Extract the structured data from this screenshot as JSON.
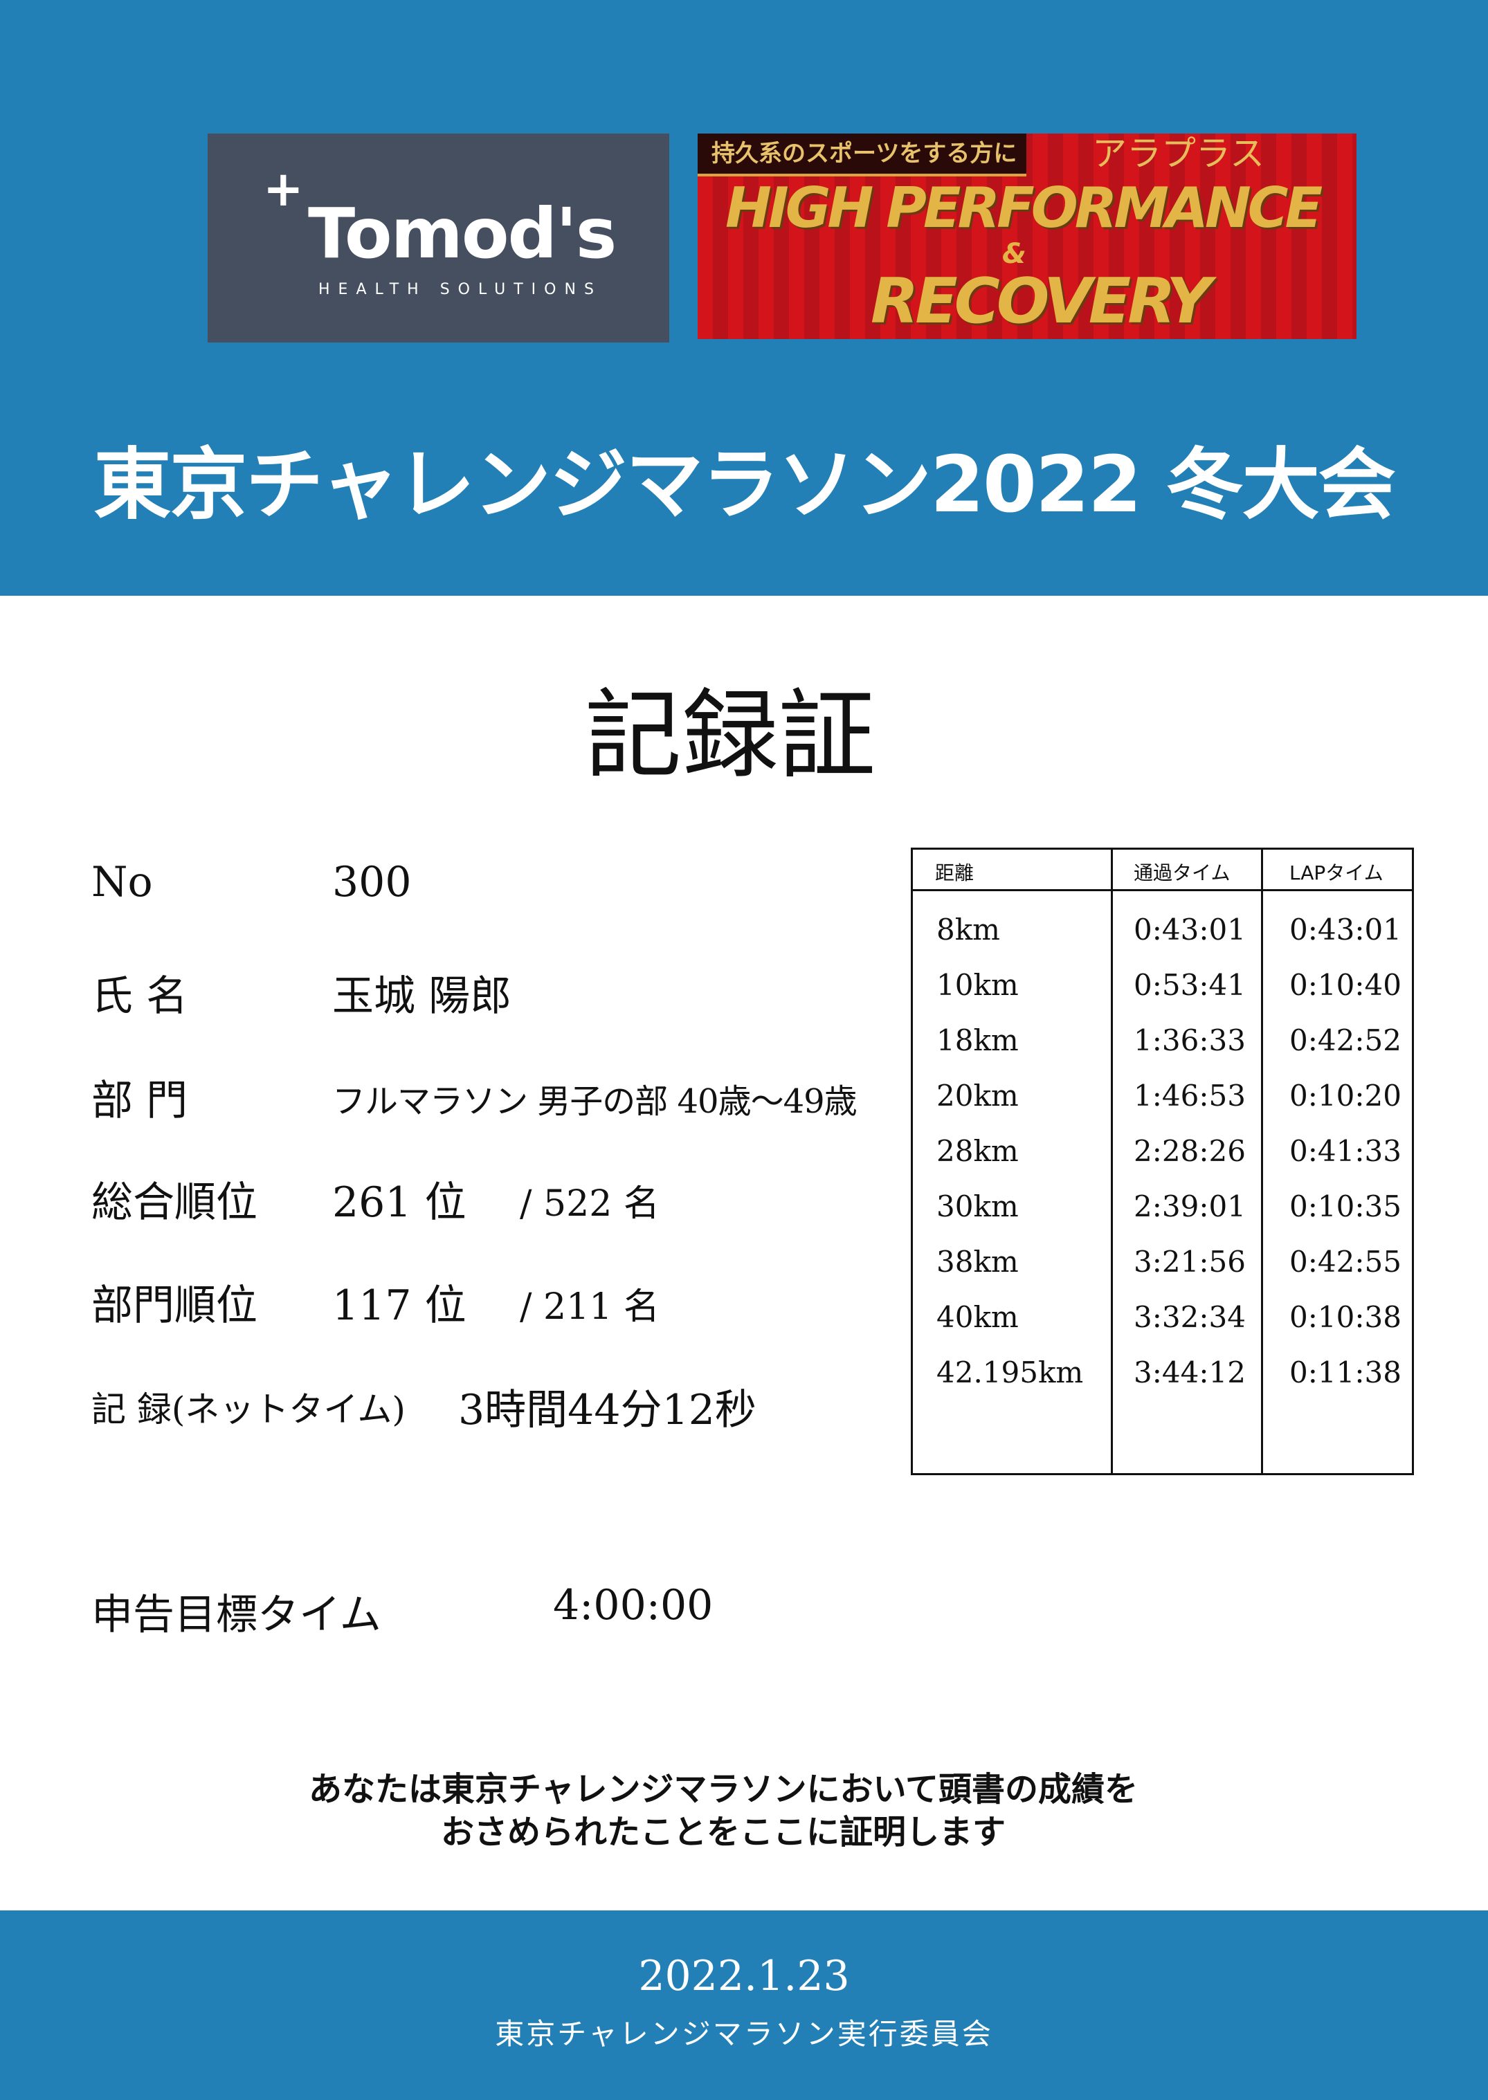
{
  "header": {
    "title": "東京チャレンジマラソン2022 冬大会",
    "logo_tomods": {
      "brand": "Tomod's",
      "sub": "HEALTH SOLUTIONS"
    },
    "logo_banner": {
      "tag": "持久系のスポーツをする方に",
      "kana": "アラプラス",
      "line1": "HIGH PERFORMANCE",
      "amp": "&",
      "line2": "RECOVERY"
    }
  },
  "doc_title": "記録証",
  "fields": [
    {
      "label": "No",
      "value": "300"
    },
    {
      "label": "氏 名",
      "value": "玉城 陽郎"
    },
    {
      "label": "部 門",
      "value": "フルマラソン 男子の部 40歳〜49歳"
    },
    {
      "label": "総合順位",
      "value": "261 位",
      "total": "/ 522 名"
    },
    {
      "label": "部門順位",
      "value": "117 位",
      "total": "/ 211 名"
    },
    {
      "label": "記 録(ネットタイム)",
      "value": "3時間44分12秒"
    },
    {
      "label": "申告目標タイム",
      "value": "4:00:00"
    }
  ],
  "splits": {
    "headers": [
      "距離",
      "通過タイム",
      "LAPタイム"
    ],
    "rows": [
      [
        "8km",
        "0:43:01",
        "0:43:01"
      ],
      [
        "10km",
        "0:53:41",
        "0:10:40"
      ],
      [
        "18km",
        "1:36:33",
        "0:42:52"
      ],
      [
        "20km",
        "1:46:53",
        "0:10:20"
      ],
      [
        "28km",
        "2:28:26",
        "0:41:33"
      ],
      [
        "30km",
        "2:39:01",
        "0:10:35"
      ],
      [
        "38km",
        "3:21:56",
        "0:42:55"
      ],
      [
        "40km",
        "3:32:34",
        "0:10:38"
      ],
      [
        "42.195km",
        "3:44:12",
        "0:11:38"
      ]
    ]
  },
  "statement": [
    "あなたは東京チャレンジマラソンにおいて頭書の成績を",
    "おさめられたことをここに証明します"
  ],
  "footer": {
    "date": "2022.1.23",
    "org": "東京チャレンジマラソン実行委員会"
  },
  "colors": {
    "header_blue": "#2280b7",
    "logo_gray": "#454f60",
    "banner_red": "#d3141b",
    "gold": "#e3b547"
  }
}
